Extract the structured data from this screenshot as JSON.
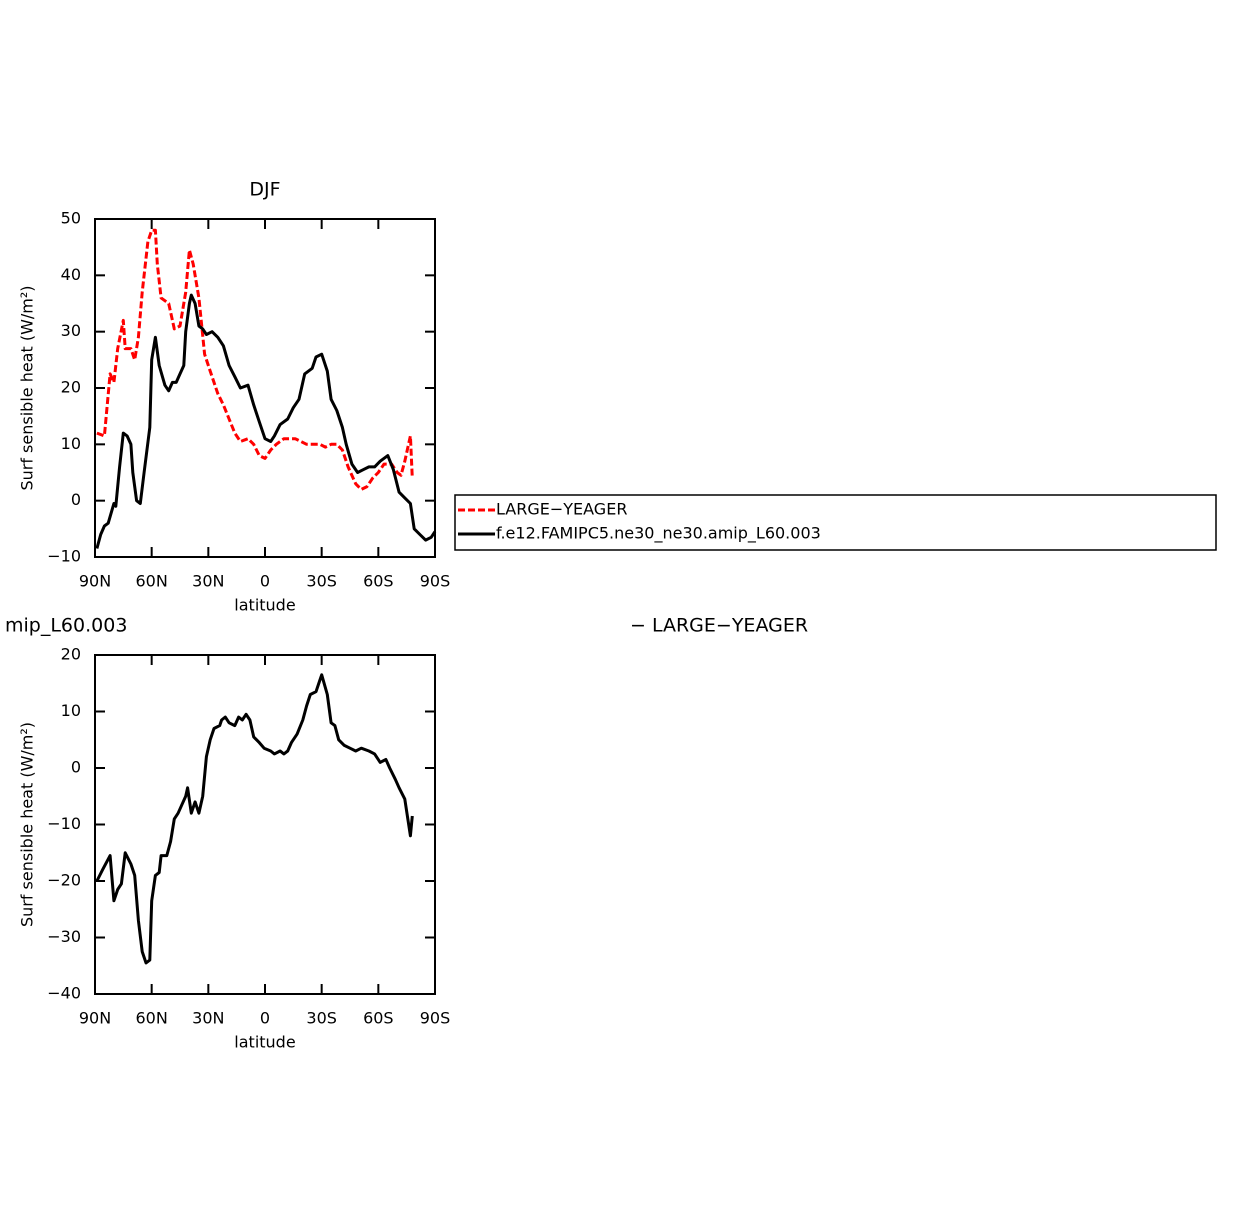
{
  "chart_data": [
    {
      "type": "line",
      "title": "DJF",
      "ylabel": "Surf sensible heat (W/m²)",
      "xlabel": "latitude",
      "xlim": [
        90,
        -90
      ],
      "ylim": [
        -10,
        50
      ],
      "xticks": [
        {
          "value": 90,
          "label": "90N"
        },
        {
          "value": 60,
          "label": "60N"
        },
        {
          "value": 30,
          "label": "30N"
        },
        0,
        {
          "value": -30,
          "label": "30S"
        },
        {
          "value": -60,
          "label": "60S"
        },
        {
          "value": -90,
          "label": "90S"
        }
      ],
      "yticks": [
        {
          "value": -10,
          "label": "−10"
        },
        0,
        10,
        20,
        30,
        40,
        50
      ],
      "legend": "right",
      "series": [
        {
          "name": "LARGE−YEAGER",
          "color": "#ff0000",
          "dash": true,
          "x": [
            89,
            85,
            82,
            80,
            78,
            75,
            74,
            71,
            69,
            67,
            65,
            62,
            60,
            58,
            57,
            55,
            51,
            48,
            45,
            42,
            40,
            38,
            35,
            32,
            29,
            25,
            22,
            19,
            16,
            13,
            9,
            6,
            3,
            0,
            -3,
            -6,
            -10,
            -13,
            -16,
            -19,
            -22,
            -25,
            -29,
            -32,
            -35,
            -38,
            -41,
            -44,
            -48,
            -51,
            -54,
            -57,
            -60,
            -63,
            -67,
            -70,
            -72,
            -74,
            -77,
            -78
          ],
          "values": [
            12,
            11.5,
            22.5,
            21,
            27,
            32,
            27,
            27,
            25,
            29,
            37,
            46,
            48,
            48,
            42,
            36,
            35,
            30.5,
            31,
            37,
            44.5,
            42,
            36,
            26,
            23,
            19,
            17,
            14.5,
            12,
            10.5,
            11,
            10,
            8,
            7.5,
            9,
            10,
            11,
            11,
            11,
            10.5,
            10,
            10,
            10,
            9.5,
            10,
            10,
            9,
            6,
            3,
            2,
            2.5,
            4,
            5,
            6.5,
            6.5,
            5,
            4.5,
            7,
            11.5,
            4
          ]
        },
        {
          "name": "f.e12.FAMIPC5.ne30_ne30.amip_L60.003",
          "color": "#000000",
          "dash": false,
          "x": [
            89,
            87,
            85,
            83,
            80,
            79,
            77,
            75,
            73,
            71,
            70,
            68,
            66,
            64,
            61,
            60,
            58,
            56,
            53,
            51,
            49,
            47,
            45,
            43,
            42,
            40,
            39,
            37,
            35,
            33,
            31,
            28,
            25,
            22,
            19,
            16,
            13,
            9,
            6,
            3,
            0,
            -3,
            -5,
            -8,
            -12,
            -15,
            -18,
            -21,
            -25,
            -27,
            -30,
            -33,
            -35,
            -38,
            -41,
            -43,
            -46,
            -49,
            -52,
            -55,
            -58,
            -61,
            -65,
            -68,
            -71,
            -74,
            -77,
            -79,
            -82,
            -85,
            -88,
            -90
          ],
          "values": [
            -8.5,
            -6,
            -4.5,
            -4,
            -0.5,
            -1,
            6,
            12,
            11.5,
            10,
            5,
            0,
            -0.5,
            5,
            13,
            25,
            29,
            24,
            20.5,
            19.5,
            21,
            21,
            22.5,
            24,
            30,
            35,
            36.5,
            35,
            31,
            30.5,
            29.5,
            30,
            29,
            27.5,
            24,
            22,
            20,
            20.5,
            17,
            14,
            11,
            10.5,
            11.5,
            13.5,
            14.5,
            16.5,
            18,
            22.5,
            23.5,
            25.5,
            26,
            23,
            18,
            16,
            13,
            10,
            6.5,
            5,
            5.5,
            6,
            6,
            7,
            8,
            5.5,
            1.5,
            0.5,
            -0.5,
            -5,
            -6,
            -7,
            -6.5,
            -5.5
          ]
        }
      ]
    },
    {
      "type": "line",
      "title_fragments": [
        "mip_L60.003",
        "− LARGE−YEAGER"
      ],
      "ylabel": "Surf sensible heat (W/m²)",
      "xlabel": "latitude",
      "xlim": [
        90,
        -90
      ],
      "ylim": [
        -40,
        20
      ],
      "xticks": [
        {
          "value": 90,
          "label": "90N"
        },
        {
          "value": 60,
          "label": "60N"
        },
        {
          "value": 30,
          "label": "30N"
        },
        0,
        {
          "value": -30,
          "label": "30S"
        },
        {
          "value": -60,
          "label": "60S"
        },
        {
          "value": -90,
          "label": "90S"
        }
      ],
      "yticks": [
        {
          "value": -40,
          "label": "−40"
        },
        {
          "value": -30,
          "label": "−30"
        },
        {
          "value": -20,
          "label": "−20"
        },
        {
          "value": -10,
          "label": "−10"
        },
        0,
        10,
        20
      ],
      "series": [
        {
          "color": "#000000",
          "dash": false,
          "x": [
            89,
            86,
            82,
            80,
            78,
            76,
            74,
            71,
            69,
            67,
            65,
            63,
            61,
            60,
            58,
            56,
            55,
            52,
            50,
            48,
            46,
            44,
            42,
            41,
            39,
            37,
            35,
            33,
            31,
            29,
            27,
            24,
            23,
            21,
            19,
            16,
            14,
            12,
            10,
            8,
            6,
            3,
            0.5,
            -3,
            -5,
            -8,
            -10,
            -12,
            -14,
            -17,
            -20,
            -22,
            -24,
            -27,
            -29,
            -30,
            -33,
            -35,
            -37,
            -39,
            -42,
            -45,
            -48,
            -51,
            -55,
            -58,
            -61,
            -64,
            -66,
            -69,
            -71,
            -74,
            -77,
            -78
          ],
          "values": [
            -20,
            -18,
            -15.5,
            -23.5,
            -21.5,
            -20.5,
            -15,
            -17,
            -19,
            -27,
            -32.5,
            -34.5,
            -34,
            -23.5,
            -19,
            -18.5,
            -15.5,
            -15.5,
            -13,
            -9,
            -8,
            -6.5,
            -5,
            -3.5,
            -8,
            -6,
            -8,
            -5,
            2,
            5,
            7,
            7.5,
            8.5,
            9,
            8,
            7.5,
            9,
            8.5,
            9.5,
            8.5,
            5.5,
            4.5,
            3.5,
            3,
            2.5,
            3,
            2.5,
            3,
            4.5,
            6,
            8.5,
            11,
            13,
            13.5,
            15.5,
            16.5,
            13,
            8,
            7.5,
            5,
            4,
            3.5,
            3,
            3.5,
            3,
            2.5,
            1,
            1.5,
            0,
            -2,
            -3.5,
            -5.5,
            -12,
            -8.5
          ]
        }
      ]
    }
  ]
}
